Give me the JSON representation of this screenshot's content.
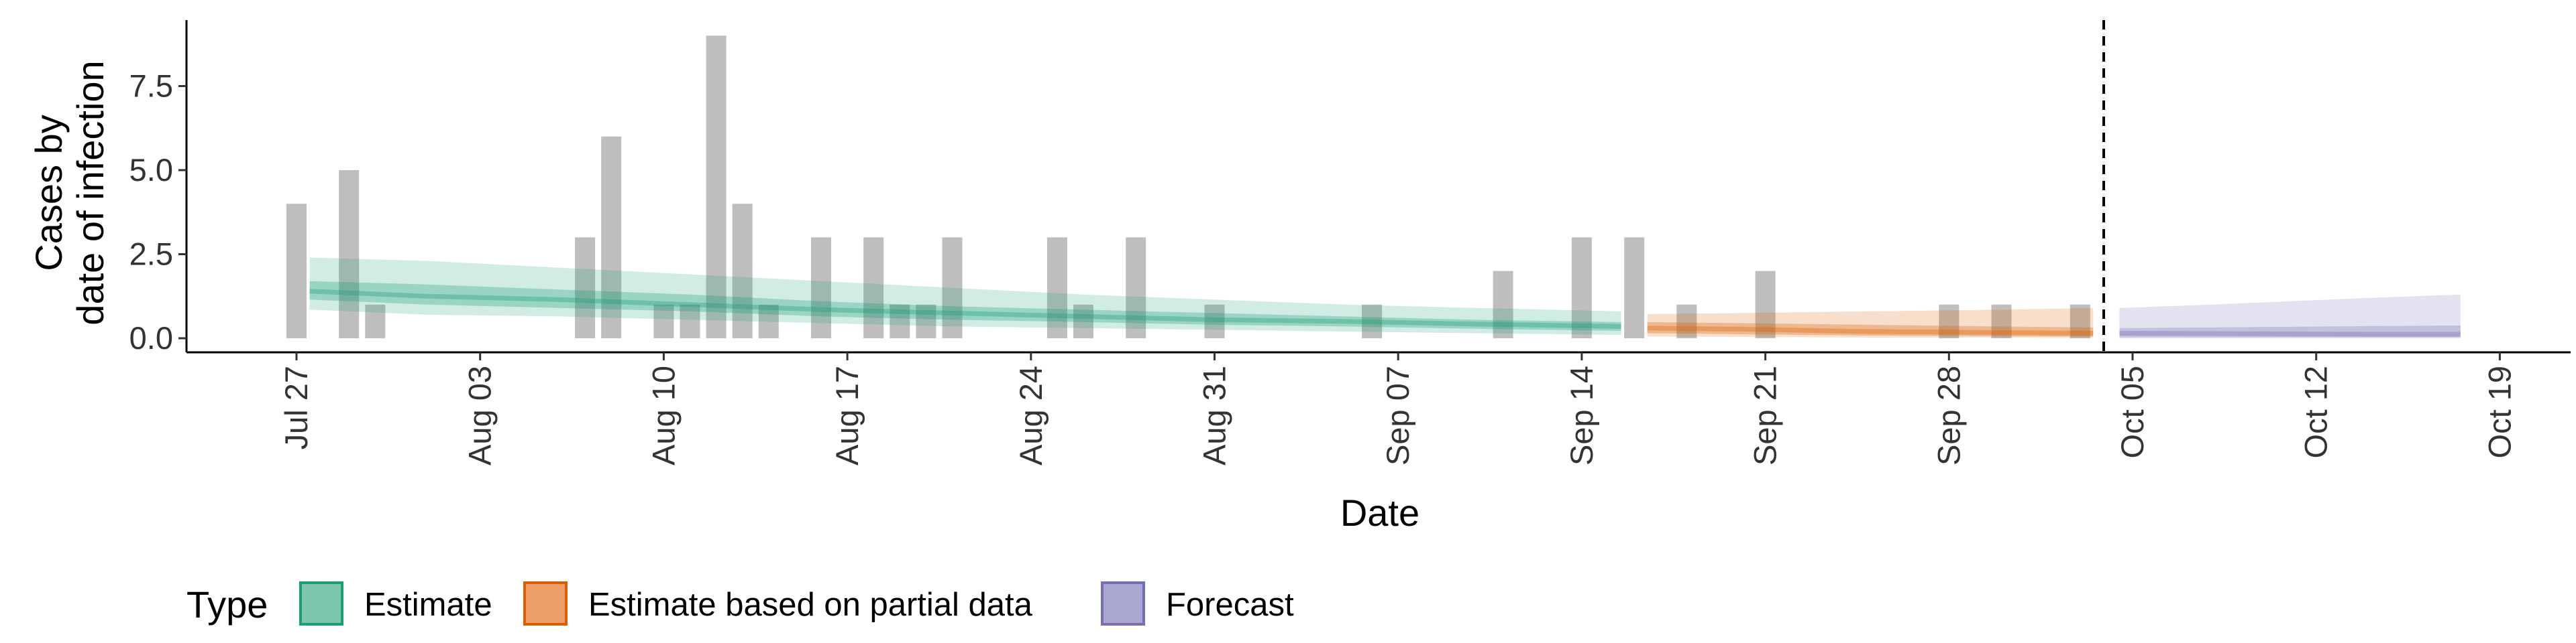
{
  "chart_data": {
    "type": "bar",
    "title": "",
    "xlabel": "Date",
    "ylabel_lines": [
      "Cases by",
      "date of infection"
    ],
    "ylim": [
      -0.45,
      9.4
    ],
    "y_ticks": [
      0.0,
      2.5,
      5.0,
      7.5
    ],
    "y_tick_labels": [
      "0.0",
      "2.5",
      "5.0",
      "7.5"
    ],
    "x_ticks": [
      {
        "day": 0,
        "label": "Jul 27"
      },
      {
        "day": 7,
        "label": "Aug 03"
      },
      {
        "day": 14,
        "label": "Aug 10"
      },
      {
        "day": 21,
        "label": "Aug 17"
      },
      {
        "day": 28,
        "label": "Aug 24"
      },
      {
        "day": 35,
        "label": "Aug 31"
      },
      {
        "day": 42,
        "label": "Sep 07"
      },
      {
        "day": 49,
        "label": "Sep 14"
      },
      {
        "day": 56,
        "label": "Sep 21"
      },
      {
        "day": 63,
        "label": "Sep 28"
      },
      {
        "day": 70,
        "label": "Oct 05"
      },
      {
        "day": 77,
        "label": "Oct 12"
      },
      {
        "day": 84,
        "label": "Oct 19"
      }
    ],
    "xlim_days": [
      -4.3,
      86.5
    ],
    "bar_color": "#bebebe",
    "cases": [
      {
        "day": 0,
        "value": 4
      },
      {
        "day": 2,
        "value": 5
      },
      {
        "day": 3,
        "value": 1
      },
      {
        "day": 11,
        "value": 3
      },
      {
        "day": 12,
        "value": 6
      },
      {
        "day": 14,
        "value": 1
      },
      {
        "day": 15,
        "value": 1
      },
      {
        "day": 16,
        "value": 9
      },
      {
        "day": 17,
        "value": 4
      },
      {
        "day": 18,
        "value": 1
      },
      {
        "day": 20,
        "value": 3
      },
      {
        "day": 22,
        "value": 3
      },
      {
        "day": 23,
        "value": 1
      },
      {
        "day": 24,
        "value": 1
      },
      {
        "day": 25,
        "value": 3
      },
      {
        "day": 29,
        "value": 3
      },
      {
        "day": 30,
        "value": 1
      },
      {
        "day": 32,
        "value": 3
      },
      {
        "day": 35,
        "value": 1
      },
      {
        "day": 41,
        "value": 1
      },
      {
        "day": 46,
        "value": 2
      },
      {
        "day": 49,
        "value": 3
      },
      {
        "day": 51,
        "value": 3
      },
      {
        "day": 53,
        "value": 1
      },
      {
        "day": 56,
        "value": 2
      },
      {
        "day": 63,
        "value": 1
      },
      {
        "day": 65,
        "value": 1
      },
      {
        "day": 68,
        "value": 1
      }
    ],
    "series": [
      {
        "name": "Estimate",
        "color": "#1b9e77",
        "days": [
          0.5,
          5,
          10,
          15,
          20,
          25,
          30,
          35,
          40,
          45,
          50.5
        ],
        "median": [
          1.4,
          1.25,
          1.15,
          1.0,
          0.85,
          0.75,
          0.65,
          0.55,
          0.5,
          0.42,
          0.35
        ],
        "lower90": [
          0.85,
          0.7,
          0.65,
          0.55,
          0.45,
          0.35,
          0.3,
          0.25,
          0.2,
          0.15,
          0.1
        ],
        "upper90": [
          2.4,
          2.3,
          2.1,
          1.9,
          1.7,
          1.5,
          1.3,
          1.15,
          1.0,
          0.9,
          0.8
        ],
        "lower50": [
          1.15,
          1.0,
          0.9,
          0.8,
          0.65,
          0.55,
          0.48,
          0.4,
          0.35,
          0.28,
          0.22
        ],
        "upper50": [
          1.7,
          1.6,
          1.45,
          1.3,
          1.1,
          0.95,
          0.85,
          0.75,
          0.65,
          0.55,
          0.48
        ]
      },
      {
        "name": "Estimate based on partial data",
        "color": "#d95f02",
        "days": [
          51.5,
          55,
          60,
          65,
          68.5
        ],
        "median": [
          0.3,
          0.27,
          0.2,
          0.17,
          0.15
        ],
        "lower90": [
          0.05,
          0.04,
          0.02,
          0.02,
          0.01
        ],
        "upper90": [
          0.72,
          0.75,
          0.8,
          0.85,
          0.9
        ],
        "lower50": [
          0.15,
          0.12,
          0.08,
          0.06,
          0.05
        ],
        "upper50": [
          0.48,
          0.45,
          0.4,
          0.35,
          0.32
        ]
      },
      {
        "name": "Forecast",
        "color": "#7570b3",
        "days": [
          69.5,
          73,
          76,
          79,
          82.5
        ],
        "median": [
          0.15,
          0.14,
          0.13,
          0.12,
          0.12
        ],
        "lower90": [
          0.0,
          0.0,
          0.0,
          0.0,
          0.0
        ],
        "upper90": [
          0.9,
          1.0,
          1.1,
          1.2,
          1.3
        ],
        "lower50": [
          0.03,
          0.03,
          0.03,
          0.03,
          0.03
        ],
        "upper50": [
          0.3,
          0.32,
          0.34,
          0.36,
          0.38
        ]
      }
    ],
    "vline_day": 68.9,
    "legend": {
      "title": "Type",
      "position": "bottom",
      "items": [
        {
          "label": "Estimate",
          "fill": "#7bc6ad",
          "stroke": "#1b9e77"
        },
        {
          "label": "Estimate based on partial data",
          "fill": "#ec9f68",
          "stroke": "#d95f02"
        },
        {
          "label": "Forecast",
          "fill": "#aaa7d3",
          "stroke": "#7570b3"
        }
      ]
    },
    "grid": false
  }
}
